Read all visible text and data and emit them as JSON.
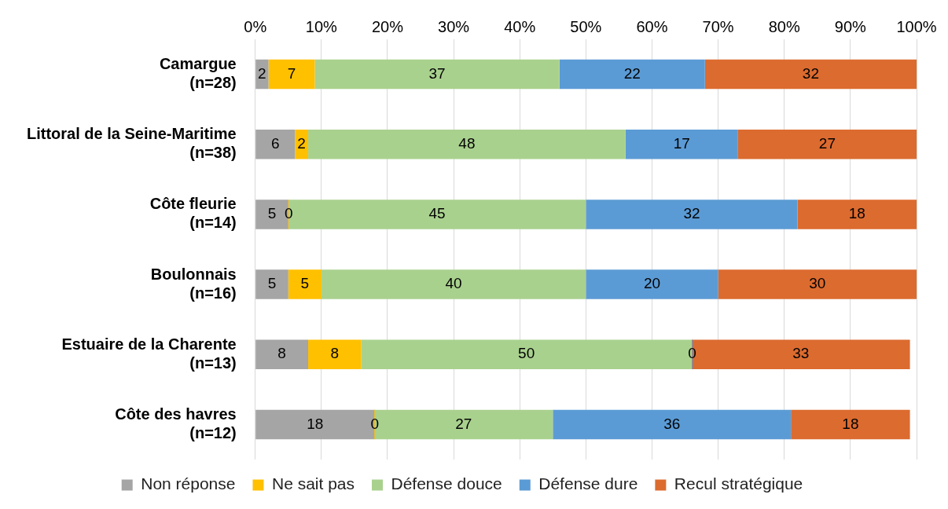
{
  "chart_data": {
    "type": "bar",
    "orientation": "horizontal",
    "stacked": true,
    "data_labels": true,
    "grid": "x",
    "legend": "bottom",
    "categories": [
      "Camargue\n(n=28)",
      "Littoral de la Seine-Maritime\n(n=38)",
      "Côte fleurie\n(n=14)",
      "Boulonnais\n(n=16)",
      "Estuaire de la Charente\n(n=13)",
      "Côte des havres\n(n=12)"
    ],
    "xlim": [
      0,
      100
    ],
    "xticks": [
      {
        "value": 0,
        "label": "0%"
      },
      {
        "value": 10,
        "label": "10%"
      },
      {
        "value": 20,
        "label": "20%"
      },
      {
        "value": 30,
        "label": "30%"
      },
      {
        "value": 40,
        "label": "40%"
      },
      {
        "value": 50,
        "label": "50%"
      },
      {
        "value": 60,
        "label": "60%"
      },
      {
        "value": 70,
        "label": "70%"
      },
      {
        "value": 80,
        "label": "80%"
      },
      {
        "value": 90,
        "label": "90%"
      },
      {
        "value": 100,
        "label": "100%"
      }
    ],
    "series": [
      {
        "name": "Non réponse",
        "color": "#a5a5a5",
        "values": [
          2,
          6,
          5,
          5,
          8,
          18
        ]
      },
      {
        "name": "Ne sait pas",
        "color": "#ffc000",
        "values": [
          7,
          2,
          0,
          5,
          8,
          0
        ]
      },
      {
        "name": "Défense douce",
        "color": "#a9d18e",
        "values": [
          37,
          48,
          45,
          40,
          50,
          27
        ]
      },
      {
        "name": "Défense dure",
        "color": "#5b9bd5",
        "values": [
          22,
          17,
          32,
          20,
          0,
          36
        ]
      },
      {
        "name": "Recul stratégique",
        "color": "#dc6b2f",
        "values": [
          32,
          27,
          18,
          30,
          33,
          18
        ]
      }
    ]
  }
}
